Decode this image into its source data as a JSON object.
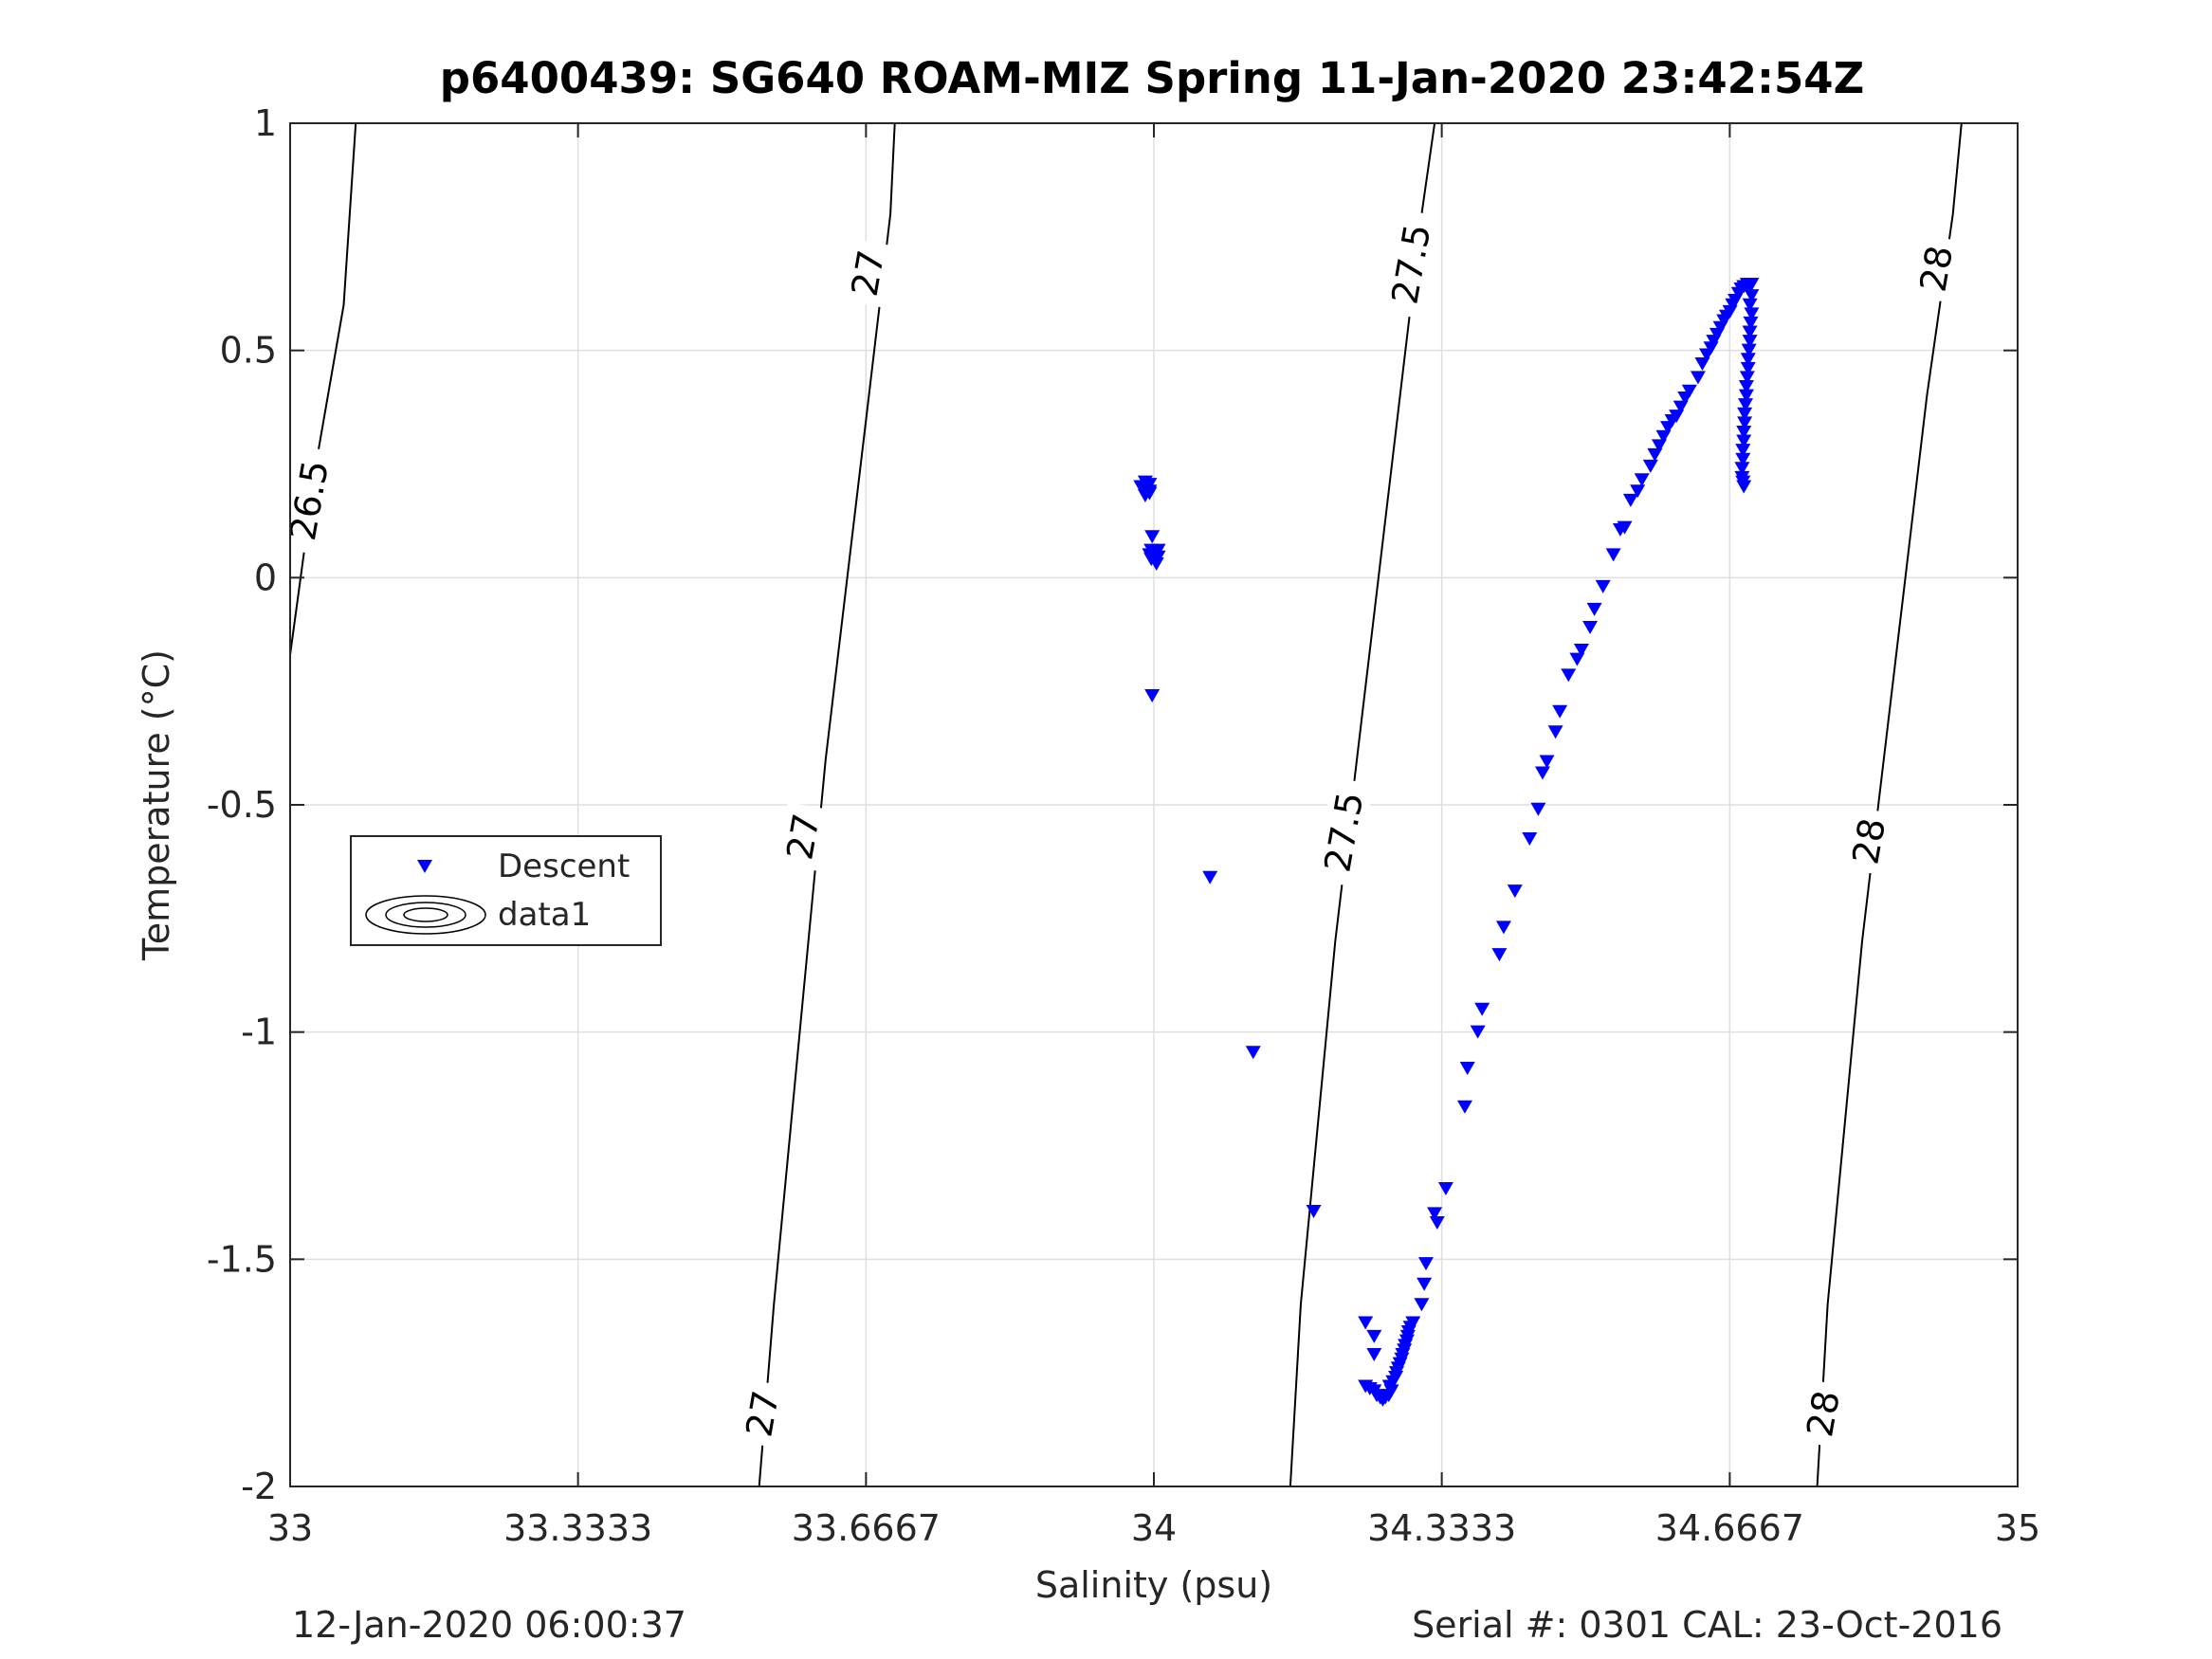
{
  "figure": {
    "title": "p6400439: SG640 ROAM-MIZ Spring 11-Jan-2020 23:42:54Z",
    "footer_left": "12-Jan-2020 06:00:37",
    "footer_right": "Serial #: 0301  CAL: 23-Oct-2016"
  },
  "chart_data": {
    "type": "scatter",
    "title": "p6400439: SG640 ROAM-MIZ Spring 11-Jan-2020 23:42:54Z",
    "xlabel": "Salinity (psu)",
    "ylabel": "Temperature (°C)",
    "xlim": [
      33,
      35
    ],
    "ylim": [
      -2,
      1
    ],
    "x_ticks": [
      33,
      33.3333,
      33.6667,
      34,
      34.3333,
      34.6667,
      35
    ],
    "x_tick_labels": [
      "33",
      "33.3333",
      "33.6667",
      "34",
      "34.3333",
      "34.6667",
      "35"
    ],
    "y_ticks": [
      1,
      0.5,
      0,
      -0.5,
      -1,
      -1.5,
      -2
    ],
    "y_tick_labels": [
      "1",
      "0.5",
      "0",
      "-0.5",
      "-1",
      "-1.5",
      "-2"
    ],
    "grid": true,
    "legend": {
      "placement": "middle-left",
      "entries": [
        {
          "label": "Descent",
          "marker": "triangle-down",
          "color": "#0000ff"
        },
        {
          "label": "data1",
          "marker": "contour-ellipses",
          "color": "#000000"
        }
      ]
    },
    "series": [
      {
        "name": "Descent",
        "marker": "triangle-down",
        "color": "#0000ff",
        "points": [
          [
            33.99,
            0.21
          ],
          [
            33.995,
            0.205
          ],
          [
            33.99,
            0.195
          ],
          [
            33.995,
            0.19
          ],
          [
            33.985,
            0.2
          ],
          [
            33.995,
            0.185
          ],
          [
            33.99,
            0.18
          ],
          [
            33.998,
            0.09
          ],
          [
            33.997,
            0.06
          ],
          [
            34.0,
            0.05
          ],
          [
            33.995,
            0.05
          ],
          [
            34.005,
            0.06
          ],
          [
            34.005,
            0.045
          ],
          [
            34.003,
            0.03
          ],
          [
            33.997,
            0.04
          ],
          [
            33.998,
            -0.26
          ],
          [
            34.065,
            -0.66
          ],
          [
            34.115,
            -1.045
          ],
          [
            34.185,
            -1.395
          ],
          [
            34.245,
            -1.64
          ],
          [
            34.255,
            -1.67
          ],
          [
            34.255,
            -1.71
          ],
          [
            34.245,
            -1.78
          ],
          [
            34.25,
            -1.785
          ],
          [
            34.255,
            -1.79
          ],
          [
            34.258,
            -1.8
          ],
          [
            34.262,
            -1.805
          ],
          [
            34.265,
            -1.81
          ],
          [
            34.268,
            -1.805
          ],
          [
            34.272,
            -1.8
          ],
          [
            34.275,
            -1.79
          ],
          [
            34.273,
            -1.78
          ],
          [
            34.277,
            -1.77
          ],
          [
            34.28,
            -1.76
          ],
          [
            34.281,
            -1.75
          ],
          [
            34.283,
            -1.74
          ],
          [
            34.285,
            -1.73
          ],
          [
            34.287,
            -1.72
          ],
          [
            34.288,
            -1.71
          ],
          [
            34.29,
            -1.7
          ],
          [
            34.291,
            -1.69
          ],
          [
            34.293,
            -1.68
          ],
          [
            34.294,
            -1.67
          ],
          [
            34.295,
            -1.66
          ],
          [
            34.297,
            -1.65
          ],
          [
            34.3,
            -1.64
          ],
          [
            34.31,
            -1.6
          ],
          [
            34.313,
            -1.555
          ],
          [
            34.315,
            -1.51
          ],
          [
            34.325,
            -1.4
          ],
          [
            34.328,
            -1.42
          ],
          [
            34.338,
            -1.345
          ],
          [
            34.36,
            -1.165
          ],
          [
            34.363,
            -1.08
          ],
          [
            34.375,
            -1.0
          ],
          [
            34.38,
            -0.95
          ],
          [
            34.4,
            -0.83
          ],
          [
            34.405,
            -0.77
          ],
          [
            34.418,
            -0.69
          ],
          [
            34.435,
            -0.575
          ],
          [
            34.445,
            -0.51
          ],
          [
            34.45,
            -0.43
          ],
          [
            34.455,
            -0.405
          ],
          [
            34.465,
            -0.34
          ],
          [
            34.47,
            -0.295
          ],
          [
            34.48,
            -0.215
          ],
          [
            34.49,
            -0.18
          ],
          [
            34.495,
            -0.16
          ],
          [
            34.505,
            -0.11
          ],
          [
            34.51,
            -0.07
          ],
          [
            34.52,
            -0.02
          ],
          [
            34.532,
            0.05
          ],
          [
            34.54,
            0.105
          ],
          [
            34.545,
            0.11
          ],
          [
            34.552,
            0.17
          ],
          [
            34.56,
            0.19
          ],
          [
            34.565,
            0.215
          ],
          [
            34.575,
            0.245
          ],
          [
            34.58,
            0.27
          ],
          [
            34.585,
            0.29
          ],
          [
            34.59,
            0.31
          ],
          [
            34.595,
            0.33
          ],
          [
            34.6,
            0.345
          ],
          [
            34.605,
            0.355
          ],
          [
            34.61,
            0.375
          ],
          [
            34.615,
            0.395
          ],
          [
            34.62,
            0.41
          ],
          [
            34.63,
            0.44
          ],
          [
            34.635,
            0.47
          ],
          [
            34.64,
            0.49
          ],
          [
            34.645,
            0.505
          ],
          [
            34.648,
            0.52
          ],
          [
            34.652,
            0.535
          ],
          [
            34.656,
            0.55
          ],
          [
            34.66,
            0.565
          ],
          [
            34.663,
            0.575
          ],
          [
            34.667,
            0.585
          ],
          [
            34.67,
            0.6
          ],
          [
            34.673,
            0.61
          ],
          [
            34.677,
            0.625
          ],
          [
            34.68,
            0.635
          ],
          [
            34.683,
            0.64
          ],
          [
            34.687,
            0.645
          ],
          [
            34.69,
            0.645
          ],
          [
            34.692,
            0.645
          ],
          [
            34.692,
            0.62
          ],
          [
            34.69,
            0.6
          ],
          [
            34.692,
            0.58
          ],
          [
            34.691,
            0.56
          ],
          [
            34.69,
            0.54
          ],
          [
            34.69,
            0.52
          ],
          [
            34.689,
            0.5
          ],
          [
            34.688,
            0.48
          ],
          [
            34.688,
            0.46
          ],
          [
            34.687,
            0.44
          ],
          [
            34.686,
            0.42
          ],
          [
            34.686,
            0.4
          ],
          [
            34.685,
            0.38
          ],
          [
            34.684,
            0.36
          ],
          [
            34.684,
            0.34
          ],
          [
            34.683,
            0.32
          ],
          [
            34.683,
            0.3
          ],
          [
            34.682,
            0.28
          ],
          [
            34.682,
            0.26
          ],
          [
            34.681,
            0.24
          ],
          [
            34.681,
            0.22
          ],
          [
            34.682,
            0.21
          ],
          [
            34.683,
            0.2
          ]
        ]
      },
      {
        "name": "data1",
        "type": "contour",
        "color": "#000000",
        "lines": [
          {
            "level": "26.5",
            "points": [
              [
                33.0,
                -0.17
              ],
              [
                33.03,
                0.25
              ],
              [
                33.062,
                0.6
              ],
              [
                33.076,
                1.0
              ]
            ],
            "labels": [
              [
                33.022,
                0.17
              ]
            ]
          },
          {
            "level": "27",
            "points": [
              [
                33.543,
                -2.0
              ],
              [
                33.56,
                -1.6
              ],
              [
                33.58,
                -1.2
              ],
              [
                33.6,
                -0.8
              ],
              [
                33.62,
                -0.4
              ],
              [
                33.645,
                0.0
              ],
              [
                33.67,
                0.4
              ],
              [
                33.695,
                0.8
              ],
              [
                33.7,
                1.0
              ]
            ],
            "labels": [
              [
                33.547,
                -1.84
              ],
              [
                33.594,
                -0.57
              ],
              [
                33.669,
                0.67
              ]
            ]
          },
          {
            "level": "27.5",
            "points": [
              [
                34.158,
                -2.0
              ],
              [
                34.17,
                -1.6
              ],
              [
                34.19,
                -1.2
              ],
              [
                34.21,
                -0.8
              ],
              [
                34.235,
                -0.4
              ],
              [
                34.26,
                0.0
              ],
              [
                34.285,
                0.4
              ],
              [
                34.31,
                0.8
              ],
              [
                34.325,
                1.0
              ]
            ],
            "labels": [
              [
                34.22,
                -0.56
              ],
              [
                34.298,
                0.69
              ]
            ]
          },
          {
            "level": "28",
            "points": [
              [
                34.768,
                -2.0
              ],
              [
                34.78,
                -1.6
              ],
              [
                34.8,
                -1.2
              ],
              [
                34.82,
                -0.8
              ],
              [
                34.845,
                -0.4
              ],
              [
                34.87,
                0.0
              ],
              [
                34.895,
                0.4
              ],
              [
                34.925,
                0.8
              ],
              [
                34.935,
                1.0
              ]
            ],
            "labels": [
              [
                34.775,
                -1.84
              ],
              [
                34.828,
                -0.58
              ],
              [
                34.906,
                0.68
              ]
            ]
          }
        ]
      }
    ]
  }
}
